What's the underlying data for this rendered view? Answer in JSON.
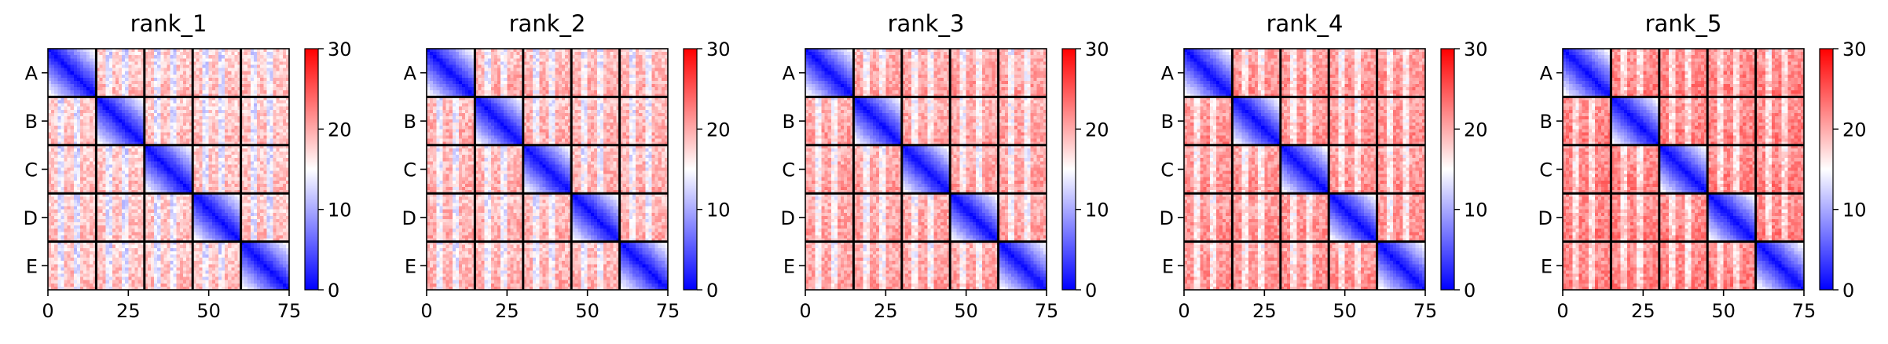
{
  "chart_data": [
    {
      "type": "heatmap",
      "title": "rank_1",
      "colormap": "bwr",
      "diagonal": "main",
      "xlim": [
        0,
        75
      ],
      "x_ticks": [
        0,
        25,
        50,
        75
      ],
      "block_labels": [
        "A",
        "B",
        "C",
        "D",
        "E"
      ],
      "block_size": 15,
      "colorbar": {
        "vmin": 0,
        "vmax": 30,
        "ticks": [
          0,
          10,
          20,
          30
        ]
      }
    },
    {
      "type": "heatmap",
      "title": "rank_2",
      "colormap": "bwr",
      "diagonal": "main",
      "xlim": [
        0,
        75
      ],
      "x_ticks": [
        0,
        25,
        50,
        75
      ],
      "block_labels": [
        "A",
        "B",
        "C",
        "D",
        "E"
      ],
      "block_size": 15,
      "colorbar": {
        "vmin": 0,
        "vmax": 30,
        "ticks": [
          0,
          10,
          20,
          30
        ]
      }
    },
    {
      "type": "heatmap",
      "title": "rank_3",
      "colormap": "bwr",
      "diagonal": "main",
      "xlim": [
        0,
        75
      ],
      "x_ticks": [
        0,
        25,
        50,
        75
      ],
      "block_labels": [
        "A",
        "B",
        "C",
        "D",
        "E"
      ],
      "block_size": 15,
      "colorbar": {
        "vmin": 0,
        "vmax": 30,
        "ticks": [
          0,
          10,
          20,
          30
        ]
      }
    },
    {
      "type": "heatmap",
      "title": "rank_4",
      "colormap": "bwr",
      "diagonal": "main",
      "xlim": [
        0,
        75
      ],
      "x_ticks": [
        0,
        25,
        50,
        75
      ],
      "block_labels": [
        "A",
        "B",
        "C",
        "D",
        "E"
      ],
      "block_size": 15,
      "colorbar": {
        "vmin": 0,
        "vmax": 30,
        "ticks": [
          0,
          10,
          20,
          30
        ]
      }
    },
    {
      "type": "heatmap",
      "title": "rank_5",
      "colormap": "bwr",
      "diagonal": "main",
      "xlim": [
        0,
        75
      ],
      "x_ticks": [
        0,
        25,
        50,
        75
      ],
      "block_labels": [
        "A",
        "B",
        "C",
        "D",
        "E"
      ],
      "block_size": 15,
      "colorbar": {
        "vmin": 0,
        "vmax": 30,
        "ticks": [
          0,
          10,
          20,
          30
        ]
      }
    }
  ]
}
